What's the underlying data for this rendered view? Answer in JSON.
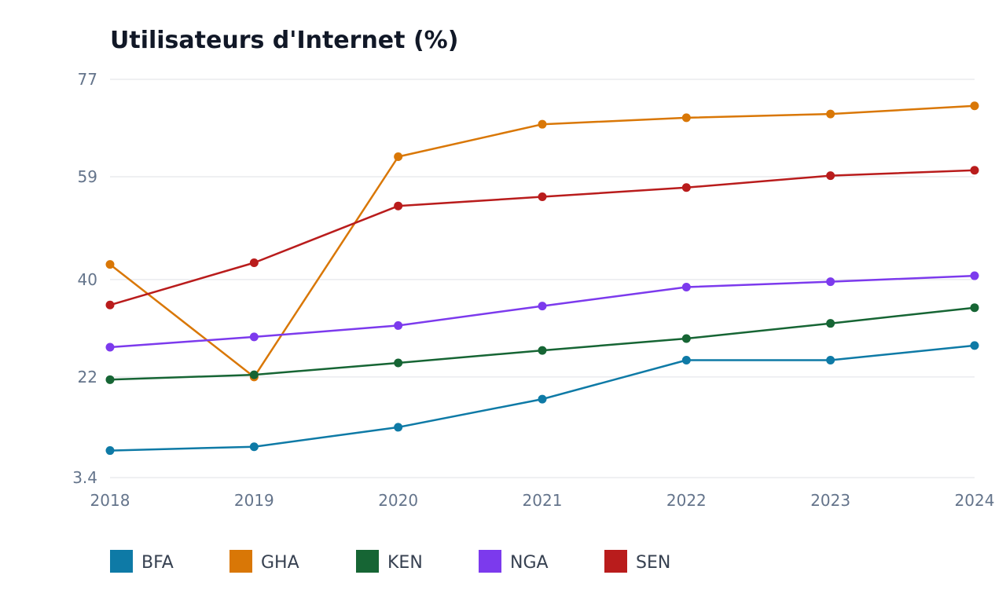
{
  "chart_data": {
    "type": "line",
    "title": "Utilisateurs d'Internet (%)",
    "xlabel": "",
    "ylabel": "",
    "x": [
      "2018",
      "2019",
      "2020",
      "2021",
      "2022",
      "2023",
      "2024"
    ],
    "y_ticks": [
      "3.4",
      "22",
      "40",
      "59",
      "77"
    ],
    "y_tick_values": [
      3.4,
      22,
      40,
      59,
      77
    ],
    "ylim": [
      3.4,
      77
    ],
    "grid": "horizontal",
    "legend_position": "bottom-left",
    "series": [
      {
        "name": "BFA",
        "color": "#0e7aa6",
        "values": [
          8.4,
          9.1,
          12.7,
          17.9,
          25.1,
          25.1,
          27.8
        ]
      },
      {
        "name": "GHA",
        "color": "#d97706",
        "values": [
          42.8,
          22.0,
          62.7,
          68.7,
          69.9,
          70.6,
          72.1
        ]
      },
      {
        "name": "KEN",
        "color": "#166534",
        "values": [
          21.5,
          22.4,
          24.6,
          26.9,
          29.1,
          31.9,
          34.8
        ]
      },
      {
        "name": "NGA",
        "color": "#7c3aed",
        "values": [
          27.5,
          29.4,
          31.5,
          35.1,
          38.6,
          39.6,
          40.7
        ]
      },
      {
        "name": "SEN",
        "color": "#b91c1c",
        "values": [
          35.3,
          43.1,
          53.6,
          55.3,
          57.0,
          59.2,
          60.2
        ]
      }
    ]
  }
}
